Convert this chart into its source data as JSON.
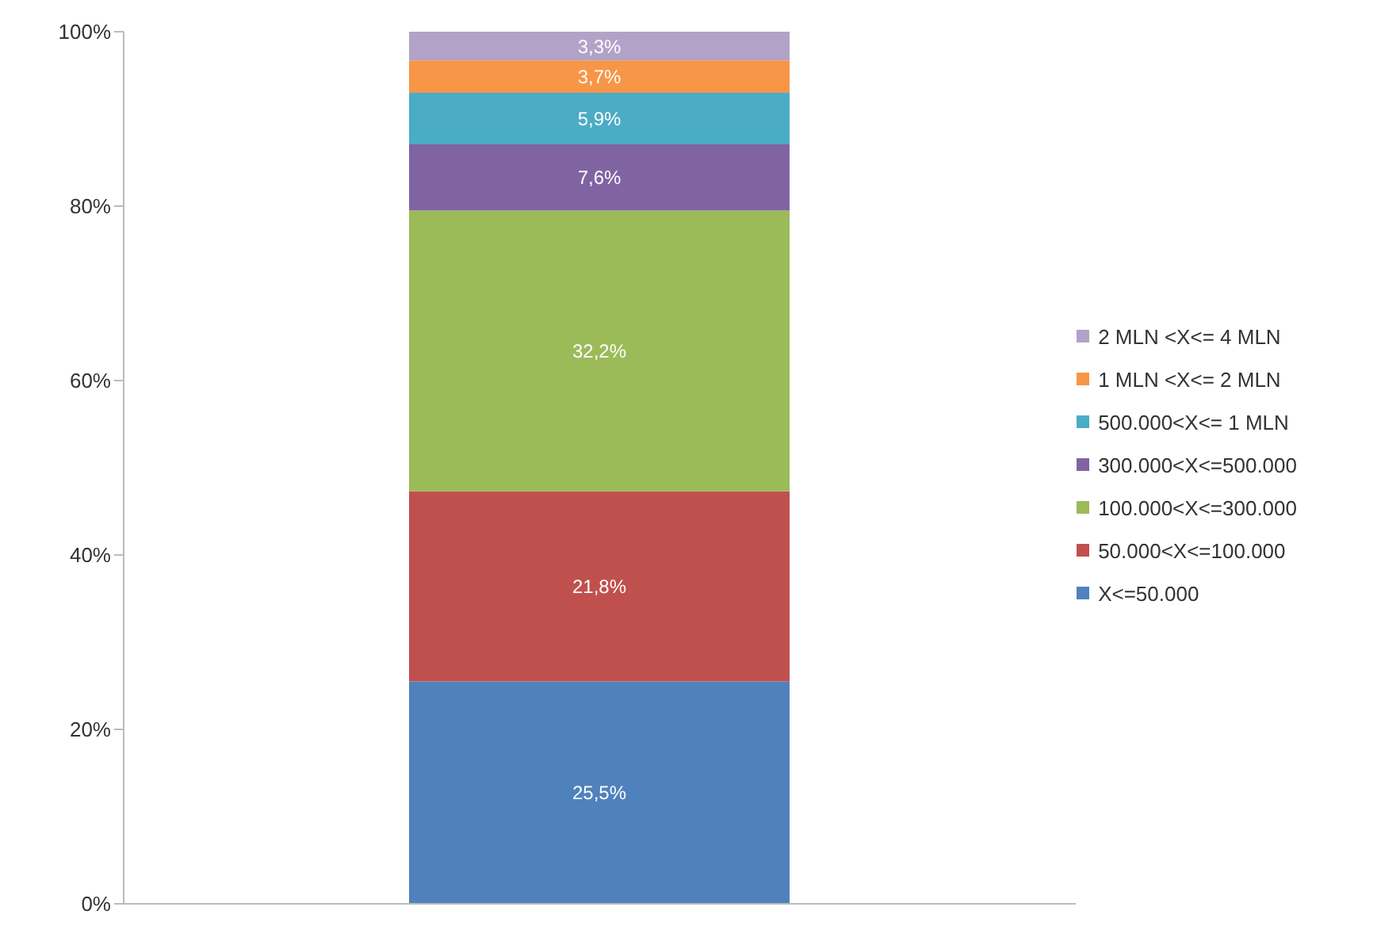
{
  "chart_data": {
    "type": "bar",
    "stacked": true,
    "categories": [
      null
    ],
    "series": [
      {
        "name": "X<=50.000",
        "color": "#4f81bd",
        "values": [
          25.5
        ],
        "value_labels": [
          "25,5%"
        ]
      },
      {
        "name": "50.000<X<=100.000",
        "color": "#c0504d",
        "values": [
          21.8
        ],
        "value_labels": [
          "21,8%"
        ]
      },
      {
        "name": "100.000<X<=300.000",
        "color": "#9bbb59",
        "values": [
          32.2
        ],
        "value_labels": [
          "32,2%"
        ]
      },
      {
        "name": "300.000<X<=500.000",
        "color": "#8064a2",
        "values": [
          7.6
        ],
        "value_labels": [
          "7,6%"
        ]
      },
      {
        "name": "500.000<X<= 1 MLN",
        "color": "#4bacc6",
        "values": [
          5.9
        ],
        "value_labels": [
          "5,9%"
        ]
      },
      {
        "name": "1 MLN <X<= 2 MLN",
        "color": "#f79646",
        "values": [
          3.7
        ],
        "value_labels": [
          "3,7%"
        ]
      },
      {
        "name": "2 MLN <X<= 4 MLN",
        "color": "#b2a2c7",
        "values": [
          3.3
        ],
        "value_labels": [
          "3,3%"
        ]
      }
    ],
    "ylim": [
      0,
      100
    ],
    "yticks": [
      {
        "value": 0,
        "label": "0%"
      },
      {
        "value": 20,
        "label": "20%"
      },
      {
        "value": 40,
        "label": "40%"
      },
      {
        "value": 60,
        "label": "60%"
      },
      {
        "value": 80,
        "label": "80%"
      },
      {
        "value": 100,
        "label": "100%"
      }
    ],
    "grid": false,
    "legend": "right"
  }
}
